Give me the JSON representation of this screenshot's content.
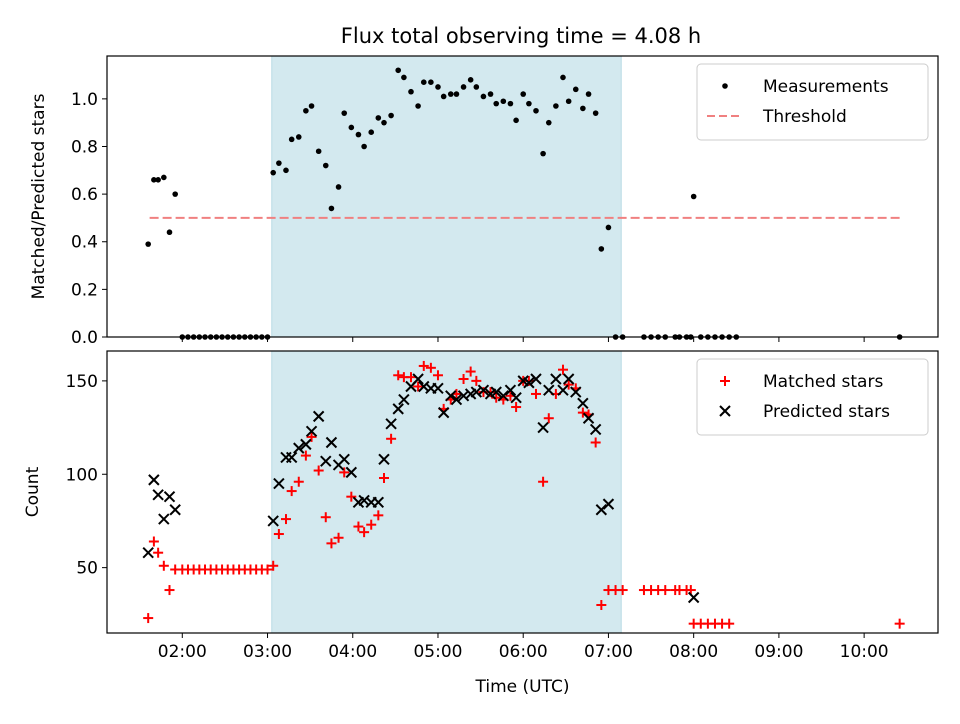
{
  "title": "Flux total observing time = 4.08 h",
  "chart_data": [
    {
      "type": "scatter",
      "ylabel": "Matched/Predicted stars",
      "xlim": [
        "01:07",
        "10:52"
      ],
      "ylim": [
        0,
        1.18
      ],
      "yticks": [
        "0.0",
        "0.2",
        "0.4",
        "0.6",
        "0.8",
        "1.0"
      ],
      "legend_position": "top-right",
      "shaded_interval": [
        "03:03",
        "07:09"
      ],
      "shade_color": "#d3e9ef",
      "threshold": {
        "name": "Threshold",
        "value": 0.5,
        "x_range": [
          "01:37",
          "10:25"
        ],
        "color": "#f08080"
      },
      "series": [
        {
          "name": "Measurements",
          "color": "#000000",
          "points": [
            [
              "01:36",
              0.39
            ],
            [
              "01:40",
              0.66
            ],
            [
              "01:43",
              0.66
            ],
            [
              "01:47",
              0.67
            ],
            [
              "01:51",
              0.44
            ],
            [
              "01:55",
              0.6
            ],
            [
              "02:00",
              0.0
            ],
            [
              "02:04",
              0.0
            ],
            [
              "02:08",
              0.0
            ],
            [
              "02:12",
              0.0
            ],
            [
              "02:16",
              0.0
            ],
            [
              "02:20",
              0.0
            ],
            [
              "02:24",
              0.0
            ],
            [
              "02:28",
              0.0
            ],
            [
              "02:32",
              0.0
            ],
            [
              "02:36",
              0.0
            ],
            [
              "02:40",
              0.0
            ],
            [
              "02:44",
              0.0
            ],
            [
              "02:48",
              0.0
            ],
            [
              "02:52",
              0.0
            ],
            [
              "02:56",
              0.0
            ],
            [
              "03:00",
              0.0
            ],
            [
              "03:04",
              0.69
            ],
            [
              "03:08",
              0.73
            ],
            [
              "03:13",
              0.7
            ],
            [
              "03:17",
              0.83
            ],
            [
              "03:22",
              0.84
            ],
            [
              "03:27",
              0.95
            ],
            [
              "03:31",
              0.97
            ],
            [
              "03:36",
              0.78
            ],
            [
              "03:41",
              0.72
            ],
            [
              "03:45",
              0.54
            ],
            [
              "03:50",
              0.63
            ],
            [
              "03:54",
              0.94
            ],
            [
              "03:59",
              0.88
            ],
            [
              "04:04",
              0.85
            ],
            [
              "04:08",
              0.8
            ],
            [
              "04:13",
              0.86
            ],
            [
              "04:18",
              0.92
            ],
            [
              "04:22",
              0.9
            ],
            [
              "04:27",
              0.93
            ],
            [
              "04:32",
              1.12
            ],
            [
              "04:36",
              1.09
            ],
            [
              "04:41",
              1.03
            ],
            [
              "04:46",
              0.97
            ],
            [
              "04:50",
              1.07
            ],
            [
              "04:55",
              1.07
            ],
            [
              "05:00",
              1.05
            ],
            [
              "05:04",
              1.01
            ],
            [
              "05:09",
              1.02
            ],
            [
              "05:13",
              1.02
            ],
            [
              "05:18",
              1.05
            ],
            [
              "05:23",
              1.08
            ],
            [
              "05:27",
              1.05
            ],
            [
              "05:32",
              1.01
            ],
            [
              "05:37",
              1.02
            ],
            [
              "05:41",
              0.98
            ],
            [
              "05:46",
              0.99
            ],
            [
              "05:51",
              0.98
            ],
            [
              "05:55",
              0.91
            ],
            [
              "06:00",
              1.02
            ],
            [
              "06:04",
              0.98
            ],
            [
              "06:09",
              0.95
            ],
            [
              "06:14",
              0.77
            ],
            [
              "06:18",
              0.9
            ],
            [
              "06:23",
              0.97
            ],
            [
              "06:28",
              1.09
            ],
            [
              "06:32",
              0.99
            ],
            [
              "06:37",
              1.04
            ],
            [
              "06:42",
              0.96
            ],
            [
              "06:46",
              1.02
            ],
            [
              "06:51",
              0.94
            ],
            [
              "06:55",
              0.37
            ],
            [
              "07:00",
              0.46
            ],
            [
              "07:05",
              0.0
            ],
            [
              "07:10",
              0.0
            ],
            [
              "07:25",
              0.0
            ],
            [
              "07:30",
              0.0
            ],
            [
              "07:35",
              0.0
            ],
            [
              "07:40",
              0.0
            ],
            [
              "07:47",
              0.0
            ],
            [
              "07:50",
              0.0
            ],
            [
              "07:55",
              0.0
            ],
            [
              "07:58",
              0.0
            ],
            [
              "08:00",
              0.59
            ],
            [
              "08:05",
              0.0
            ],
            [
              "08:10",
              0.0
            ],
            [
              "08:15",
              0.0
            ],
            [
              "08:20",
              0.0
            ],
            [
              "08:25",
              0.0
            ],
            [
              "08:30",
              0.0
            ],
            [
              "10:25",
              0.0
            ]
          ]
        }
      ]
    },
    {
      "type": "scatter",
      "xlabel": "Time (UTC)",
      "ylabel": "Count",
      "xlim": [
        "01:07",
        "10:52"
      ],
      "ylim": [
        15,
        166
      ],
      "yticks": [
        "50",
        "100",
        "150"
      ],
      "xticks": [
        "02:00",
        "03:00",
        "04:00",
        "05:00",
        "06:00",
        "07:00",
        "08:00",
        "09:00",
        "10:00"
      ],
      "legend_position": "top-right",
      "shaded_interval": [
        "03:03",
        "07:09"
      ],
      "series": [
        {
          "name": "Matched stars",
          "color": "#ff0000",
          "marker": "plus",
          "points": [
            [
              "01:36",
              23
            ],
            [
              "01:40",
              64
            ],
            [
              "01:43",
              58
            ],
            [
              "01:47",
              51
            ],
            [
              "01:51",
              38
            ],
            [
              "01:55",
              49
            ],
            [
              "02:00",
              49
            ],
            [
              "02:04",
              49
            ],
            [
              "02:08",
              49
            ],
            [
              "02:12",
              49
            ],
            [
              "02:16",
              49
            ],
            [
              "02:20",
              49
            ],
            [
              "02:24",
              49
            ],
            [
              "02:28",
              49
            ],
            [
              "02:32",
              49
            ],
            [
              "02:36",
              49
            ],
            [
              "02:40",
              49
            ],
            [
              "02:44",
              49
            ],
            [
              "02:48",
              49
            ],
            [
              "02:52",
              49
            ],
            [
              "02:56",
              49
            ],
            [
              "03:00",
              49
            ],
            [
              "03:04",
              51
            ],
            [
              "03:08",
              68
            ],
            [
              "03:13",
              76
            ],
            [
              "03:17",
              91
            ],
            [
              "03:22",
              96
            ],
            [
              "03:27",
              110
            ],
            [
              "03:31",
              120
            ],
            [
              "03:36",
              102
            ],
            [
              "03:41",
              77
            ],
            [
              "03:45",
              63
            ],
            [
              "03:50",
              66
            ],
            [
              "03:54",
              101
            ],
            [
              "03:59",
              88
            ],
            [
              "04:04",
              72
            ],
            [
              "04:08",
              69
            ],
            [
              "04:13",
              73
            ],
            [
              "04:18",
              78
            ],
            [
              "04:22",
              98
            ],
            [
              "04:27",
              119
            ],
            [
              "04:32",
              153
            ],
            [
              "04:36",
              152
            ],
            [
              "04:41",
              152
            ],
            [
              "04:46",
              147
            ],
            [
              "04:50",
              158
            ],
            [
              "04:55",
              157
            ],
            [
              "05:00",
              153
            ],
            [
              "05:04",
              135
            ],
            [
              "05:09",
              140
            ],
            [
              "05:13",
              143
            ],
            [
              "05:18",
              151
            ],
            [
              "05:23",
              155
            ],
            [
              "05:27",
              150
            ],
            [
              "05:32",
              144
            ],
            [
              "05:37",
              144
            ],
            [
              "05:41",
              141
            ],
            [
              "05:46",
              140
            ],
            [
              "05:51",
              142
            ],
            [
              "05:55",
              136
            ],
            [
              "06:00",
              150
            ],
            [
              "06:04",
              150
            ],
            [
              "06:09",
              143
            ],
            [
              "06:14",
              96
            ],
            [
              "06:18",
              130
            ],
            [
              "06:23",
              143
            ],
            [
              "06:28",
              156
            ],
            [
              "06:32",
              148
            ],
            [
              "06:37",
              146
            ],
            [
              "06:42",
              133
            ],
            [
              "06:46",
              132
            ],
            [
              "06:51",
              117
            ],
            [
              "06:55",
              30
            ],
            [
              "07:00",
              38
            ],
            [
              "07:05",
              38
            ],
            [
              "07:10",
              38
            ],
            [
              "07:25",
              38
            ],
            [
              "07:30",
              38
            ],
            [
              "07:35",
              38
            ],
            [
              "07:40",
              38
            ],
            [
              "07:47",
              38
            ],
            [
              "07:50",
              38
            ],
            [
              "07:55",
              38
            ],
            [
              "07:58",
              38
            ],
            [
              "08:00",
              20
            ],
            [
              "08:05",
              20
            ],
            [
              "08:10",
              20
            ],
            [
              "08:15",
              20
            ],
            [
              "08:20",
              20
            ],
            [
              "08:25",
              20
            ],
            [
              "10:25",
              20
            ]
          ]
        },
        {
          "name": "Predicted stars",
          "color": "#000000",
          "marker": "x",
          "points": [
            [
              "01:36",
              58
            ],
            [
              "01:40",
              97
            ],
            [
              "01:43",
              89
            ],
            [
              "01:47",
              76
            ],
            [
              "01:51",
              88
            ],
            [
              "01:55",
              81
            ],
            [
              "03:04",
              75
            ],
            [
              "03:08",
              95
            ],
            [
              "03:13",
              109
            ],
            [
              "03:17",
              109
            ],
            [
              "03:22",
              114
            ],
            [
              "03:27",
              116
            ],
            [
              "03:31",
              123
            ],
            [
              "03:36",
              131
            ],
            [
              "03:41",
              107
            ],
            [
              "03:45",
              117
            ],
            [
              "03:50",
              105
            ],
            [
              "03:54",
              108
            ],
            [
              "03:59",
              101
            ],
            [
              "04:04",
              85
            ],
            [
              "04:08",
              86
            ],
            [
              "04:13",
              85
            ],
            [
              "04:18",
              85
            ],
            [
              "04:22",
              108
            ],
            [
              "04:27",
              127
            ],
            [
              "04:32",
              135
            ],
            [
              "04:36",
              140
            ],
            [
              "04:41",
              147
            ],
            [
              "04:46",
              151
            ],
            [
              "04:50",
              147
            ],
            [
              "04:55",
              146
            ],
            [
              "05:00",
              146
            ],
            [
              "05:04",
              133
            ],
            [
              "05:09",
              142
            ],
            [
              "05:13",
              140
            ],
            [
              "05:18",
              142
            ],
            [
              "05:23",
              143
            ],
            [
              "05:27",
              144
            ],
            [
              "05:32",
              145
            ],
            [
              "05:37",
              143
            ],
            [
              "05:41",
              144
            ],
            [
              "05:46",
              142
            ],
            [
              "05:51",
              145
            ],
            [
              "05:55",
              141
            ],
            [
              "06:00",
              150
            ],
            [
              "06:04",
              149
            ],
            [
              "06:09",
              151
            ],
            [
              "06:14",
              125
            ],
            [
              "06:18",
              145
            ],
            [
              "06:23",
              151
            ],
            [
              "06:28",
              145
            ],
            [
              "06:32",
              151
            ],
            [
              "06:37",
              144
            ],
            [
              "06:42",
              138
            ],
            [
              "06:46",
              130
            ],
            [
              "06:51",
              124
            ],
            [
              "06:55",
              81
            ],
            [
              "07:00",
              84
            ],
            [
              "08:00",
              34
            ]
          ]
        }
      ]
    }
  ]
}
